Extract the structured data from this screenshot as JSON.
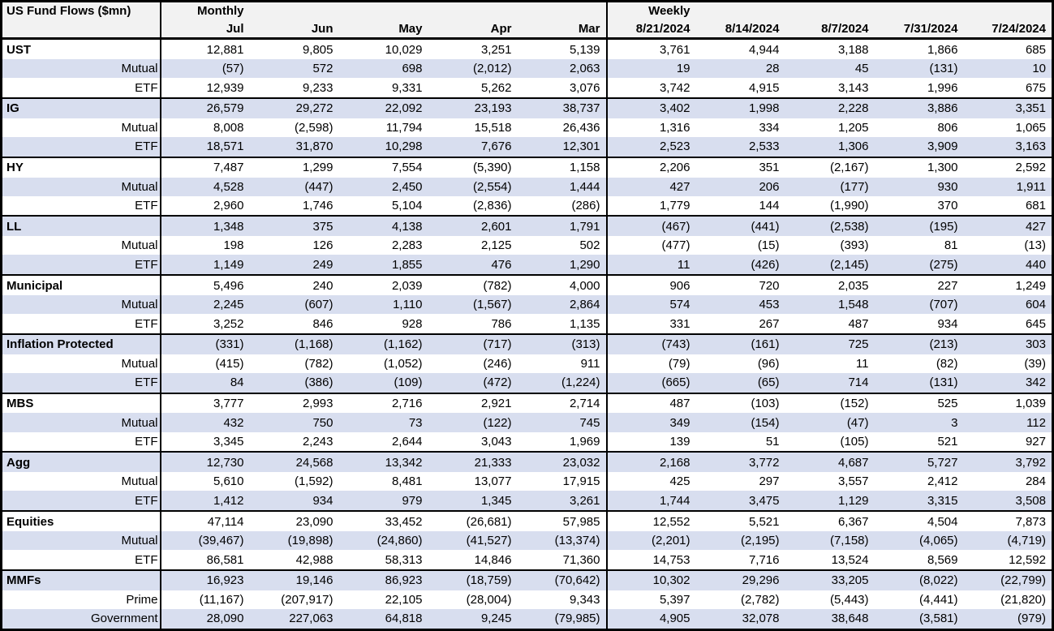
{
  "title": "US Fund Flows ($mn)",
  "colors": {
    "stripe": "#D8DEEF",
    "header_bg": "#F2F2F2",
    "border": "#000000",
    "text": "#000000"
  },
  "chart_data": {
    "type": "table",
    "title": "US Fund Flows ($mn)",
    "units": "$mn",
    "section_headers": {
      "monthly": "Monthly",
      "weekly": "Weekly"
    },
    "monthly_columns": [
      "Jul",
      "Jun",
      "May",
      "Apr",
      "Mar"
    ],
    "weekly_columns": [
      "8/21/2024",
      "8/14/2024",
      "8/7/2024",
      "7/31/2024",
      "7/24/2024"
    ],
    "groups": [
      {
        "rows": [
          {
            "label": "UST",
            "monthly": [
              "12,881",
              "9,805",
              "10,029",
              "3,251",
              "5,139"
            ],
            "weekly": [
              "3,761",
              "4,944",
              "3,188",
              "1,866",
              "685"
            ]
          },
          {
            "label": "Mutual",
            "monthly": [
              "(57)",
              "572",
              "698",
              "(2,012)",
              "2,063"
            ],
            "weekly": [
              "19",
              "28",
              "45",
              "(131)",
              "10"
            ]
          },
          {
            "label": "ETF",
            "monthly": [
              "12,939",
              "9,233",
              "9,331",
              "5,262",
              "3,076"
            ],
            "weekly": [
              "3,742",
              "4,915",
              "3,143",
              "1,996",
              "675"
            ]
          }
        ]
      },
      {
        "rows": [
          {
            "label": "IG",
            "monthly": [
              "26,579",
              "29,272",
              "22,092",
              "23,193",
              "38,737"
            ],
            "weekly": [
              "3,402",
              "1,998",
              "2,228",
              "3,886",
              "3,351"
            ]
          },
          {
            "label": "Mutual",
            "monthly": [
              "8,008",
              "(2,598)",
              "11,794",
              "15,518",
              "26,436"
            ],
            "weekly": [
              "1,316",
              "334",
              "1,205",
              "806",
              "1,065"
            ]
          },
          {
            "label": "ETF",
            "monthly": [
              "18,571",
              "31,870",
              "10,298",
              "7,676",
              "12,301"
            ],
            "weekly": [
              "2,523",
              "2,533",
              "1,306",
              "3,909",
              "3,163"
            ]
          }
        ]
      },
      {
        "rows": [
          {
            "label": "HY",
            "monthly": [
              "7,487",
              "1,299",
              "7,554",
              "(5,390)",
              "1,158"
            ],
            "weekly": [
              "2,206",
              "351",
              "(2,167)",
              "1,300",
              "2,592"
            ]
          },
          {
            "label": "Mutual",
            "monthly": [
              "4,528",
              "(447)",
              "2,450",
              "(2,554)",
              "1,444"
            ],
            "weekly": [
              "427",
              "206",
              "(177)",
              "930",
              "1,911"
            ]
          },
          {
            "label": "ETF",
            "monthly": [
              "2,960",
              "1,746",
              "5,104",
              "(2,836)",
              "(286)"
            ],
            "weekly": [
              "1,779",
              "144",
              "(1,990)",
              "370",
              "681"
            ]
          }
        ]
      },
      {
        "rows": [
          {
            "label": "LL",
            "monthly": [
              "1,348",
              "375",
              "4,138",
              "2,601",
              "1,791"
            ],
            "weekly": [
              "(467)",
              "(441)",
              "(2,538)",
              "(195)",
              "427"
            ]
          },
          {
            "label": "Mutual",
            "monthly": [
              "198",
              "126",
              "2,283",
              "2,125",
              "502"
            ],
            "weekly": [
              "(477)",
              "(15)",
              "(393)",
              "81",
              "(13)"
            ]
          },
          {
            "label": "ETF",
            "monthly": [
              "1,149",
              "249",
              "1,855",
              "476",
              "1,290"
            ],
            "weekly": [
              "11",
              "(426)",
              "(2,145)",
              "(275)",
              "440"
            ]
          }
        ]
      },
      {
        "rows": [
          {
            "label": "Municipal",
            "monthly": [
              "5,496",
              "240",
              "2,039",
              "(782)",
              "4,000"
            ],
            "weekly": [
              "906",
              "720",
              "2,035",
              "227",
              "1,249"
            ]
          },
          {
            "label": "Mutual",
            "monthly": [
              "2,245",
              "(607)",
              "1,110",
              "(1,567)",
              "2,864"
            ],
            "weekly": [
              "574",
              "453",
              "1,548",
              "(707)",
              "604"
            ]
          },
          {
            "label": "ETF",
            "monthly": [
              "3,252",
              "846",
              "928",
              "786",
              "1,135"
            ],
            "weekly": [
              "331",
              "267",
              "487",
              "934",
              "645"
            ]
          }
        ]
      },
      {
        "rows": [
          {
            "label": "Inflation Protected",
            "monthly": [
              "(331)",
              "(1,168)",
              "(1,162)",
              "(717)",
              "(313)"
            ],
            "weekly": [
              "(743)",
              "(161)",
              "725",
              "(213)",
              "303"
            ]
          },
          {
            "label": "Mutual",
            "monthly": [
              "(415)",
              "(782)",
              "(1,052)",
              "(246)",
              "911"
            ],
            "weekly": [
              "(79)",
              "(96)",
              "11",
              "(82)",
              "(39)"
            ]
          },
          {
            "label": "ETF",
            "monthly": [
              "84",
              "(386)",
              "(109)",
              "(472)",
              "(1,224)"
            ],
            "weekly": [
              "(665)",
              "(65)",
              "714",
              "(131)",
              "342"
            ]
          }
        ]
      },
      {
        "rows": [
          {
            "label": "MBS",
            "monthly": [
              "3,777",
              "2,993",
              "2,716",
              "2,921",
              "2,714"
            ],
            "weekly": [
              "487",
              "(103)",
              "(152)",
              "525",
              "1,039"
            ]
          },
          {
            "label": "Mutual",
            "monthly": [
              "432",
              "750",
              "73",
              "(122)",
              "745"
            ],
            "weekly": [
              "349",
              "(154)",
              "(47)",
              "3",
              "112"
            ]
          },
          {
            "label": "ETF",
            "monthly": [
              "3,345",
              "2,243",
              "2,644",
              "3,043",
              "1,969"
            ],
            "weekly": [
              "139",
              "51",
              "(105)",
              "521",
              "927"
            ]
          }
        ]
      },
      {
        "rows": [
          {
            "label": "Agg",
            "monthly": [
              "12,730",
              "24,568",
              "13,342",
              "21,333",
              "23,032"
            ],
            "weekly": [
              "2,168",
              "3,772",
              "4,687",
              "5,727",
              "3,792"
            ]
          },
          {
            "label": "Mutual",
            "monthly": [
              "5,610",
              "(1,592)",
              "8,481",
              "13,077",
              "17,915"
            ],
            "weekly": [
              "425",
              "297",
              "3,557",
              "2,412",
              "284"
            ]
          },
          {
            "label": "ETF",
            "monthly": [
              "1,412",
              "934",
              "979",
              "1,345",
              "3,261"
            ],
            "weekly": [
              "1,744",
              "3,475",
              "1,129",
              "3,315",
              "3,508"
            ]
          }
        ]
      },
      {
        "rows": [
          {
            "label": "Equities",
            "monthly": [
              "47,114",
              "23,090",
              "33,452",
              "(26,681)",
              "57,985"
            ],
            "weekly": [
              "12,552",
              "5,521",
              "6,367",
              "4,504",
              "7,873"
            ]
          },
          {
            "label": "Mutual",
            "monthly": [
              "(39,467)",
              "(19,898)",
              "(24,860)",
              "(41,527)",
              "(13,374)"
            ],
            "weekly": [
              "(2,201)",
              "(2,195)",
              "(7,158)",
              "(4,065)",
              "(4,719)"
            ]
          },
          {
            "label": "ETF",
            "monthly": [
              "86,581",
              "42,988",
              "58,313",
              "14,846",
              "71,360"
            ],
            "weekly": [
              "14,753",
              "7,716",
              "13,524",
              "8,569",
              "12,592"
            ]
          }
        ]
      },
      {
        "rows": [
          {
            "label": "MMFs",
            "monthly": [
              "16,923",
              "19,146",
              "86,923",
              "(18,759)",
              "(70,642)"
            ],
            "weekly": [
              "10,302",
              "29,296",
              "33,205",
              "(8,022)",
              "(22,799)"
            ]
          },
          {
            "label": "Prime",
            "monthly": [
              "(11,167)",
              "(207,917)",
              "22,105",
              "(28,004)",
              "9,343"
            ],
            "weekly": [
              "5,397",
              "(2,782)",
              "(5,443)",
              "(4,441)",
              "(21,820)"
            ]
          },
          {
            "label": "Government",
            "monthly": [
              "28,090",
              "227,063",
              "64,818",
              "9,245",
              "(79,985)"
            ],
            "weekly": [
              "4,905",
              "32,078",
              "38,648",
              "(3,581)",
              "(979)"
            ]
          }
        ]
      }
    ]
  }
}
